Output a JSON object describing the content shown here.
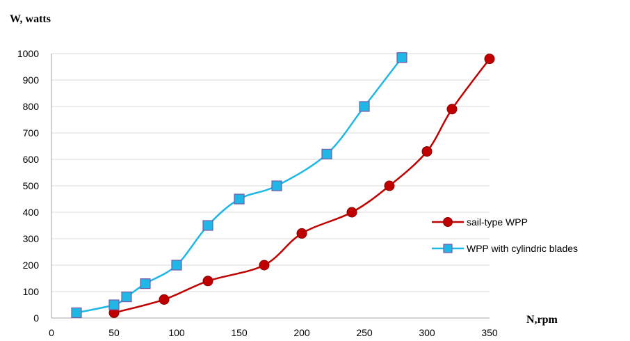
{
  "chart_data": {
    "type": "line",
    "ylabel": "W,  watts",
    "xlabel": "N,rpm",
    "xlim": [
      0,
      350
    ],
    "ylim": [
      0,
      1000
    ],
    "xticks": [
      "0",
      "50",
      "100",
      "150",
      "200",
      "250",
      "300",
      "350"
    ],
    "yticks": [
      "0",
      "100",
      "200",
      "300",
      "400",
      "500",
      "600",
      "700",
      "800",
      "900",
      "1000"
    ],
    "grid": "horizontal",
    "legend_position": "right",
    "series": [
      {
        "name": "sail-type WPP",
        "color": "#c00000",
        "marker": "circle",
        "points": [
          [
            50,
            20
          ],
          [
            90,
            70
          ],
          [
            125,
            140
          ],
          [
            170,
            200
          ],
          [
            200,
            320
          ],
          [
            240,
            400
          ],
          [
            270,
            500
          ],
          [
            300,
            630
          ],
          [
            320,
            790
          ],
          [
            350,
            980
          ]
        ]
      },
      {
        "name": "WPP with cylindric blades",
        "color": "#1fb7e6",
        "marker": "square",
        "points": [
          [
            20,
            20
          ],
          [
            50,
            50
          ],
          [
            60,
            80
          ],
          [
            75,
            130
          ],
          [
            100,
            200
          ],
          [
            125,
            350
          ],
          [
            150,
            450
          ],
          [
            180,
            500
          ],
          [
            220,
            620
          ],
          [
            250,
            800
          ],
          [
            280,
            985
          ]
        ]
      }
    ]
  }
}
